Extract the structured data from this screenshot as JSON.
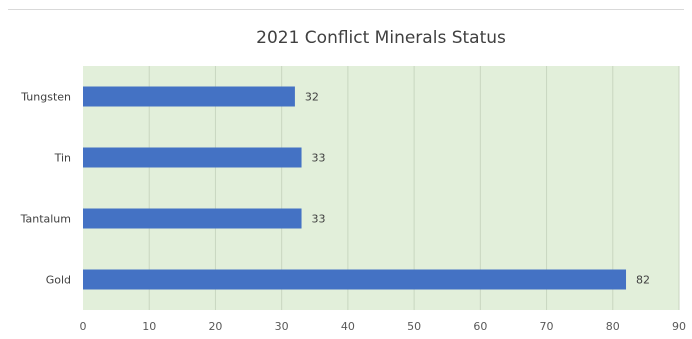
{
  "chart_data": {
    "type": "bar",
    "orientation": "horizontal",
    "title": "2021 Conflict Minerals Status",
    "categories": [
      "Tungsten",
      "Tin",
      "Tantalum",
      "Gold"
    ],
    "values": [
      32,
      33,
      33,
      82
    ],
    "xlim": [
      0,
      90
    ],
    "xticks": [
      0,
      10,
      20,
      30,
      40,
      50,
      60,
      70,
      80,
      90
    ],
    "xlabel": "",
    "ylabel": "",
    "grid": true,
    "legend": "none",
    "data_labels": true,
    "colors": {
      "bar": "#4472c4",
      "plot_background": "#e2efda",
      "gridline": "#c9d6c0"
    }
  }
}
